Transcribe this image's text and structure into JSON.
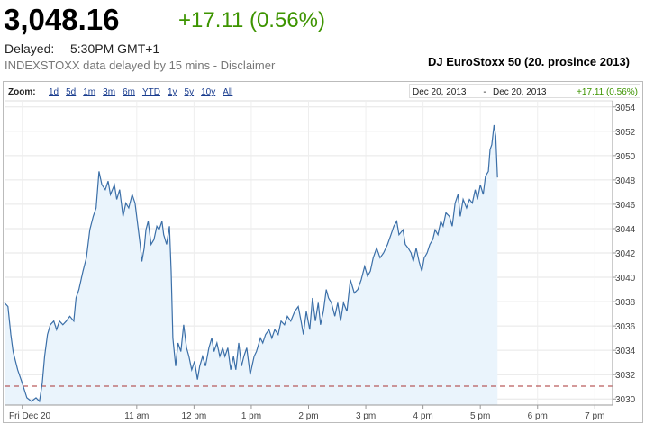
{
  "header": {
    "price": "3,048.16",
    "change": "+17.11 (0.56%)",
    "delayed_label": "Delayed:",
    "delayed_time": "5:30PM GMT+1",
    "source_note": "INDEXSTOXX data delayed by 15 mins - Disclaimer"
  },
  "title": "DJ EuroStoxx 50 (20. prosince 2013)",
  "toolbar": {
    "zoom_label": "Zoom:",
    "ranges": [
      "1d",
      "5d",
      "1m",
      "3m",
      "6m",
      "YTD",
      "1y",
      "5y",
      "10y",
      "All"
    ],
    "date_from": "Dec 20, 2013",
    "separator": "-",
    "date_to": "Dec 20, 2013",
    "change": "+17.11 (0.56%)"
  },
  "chart_data": {
    "type": "area",
    "color": "#3b6fa8",
    "fill": "#eaf4fc",
    "grid": true,
    "reference_line": 3031.05,
    "reference_color": "#a33",
    "xlim": [
      8.69,
      19.31
    ],
    "ylim": [
      3029.5,
      3054.5
    ],
    "xticks": [
      {
        "value": 9,
        "label": "Fri Dec 20"
      },
      {
        "value": 11,
        "label": "11 am"
      },
      {
        "value": 12,
        "label": "12 pm"
      },
      {
        "value": 13,
        "label": "1 pm"
      },
      {
        "value": 14,
        "label": "2 pm"
      },
      {
        "value": 15,
        "label": "3 pm"
      },
      {
        "value": 16,
        "label": "4 pm"
      },
      {
        "value": 17,
        "label": "5 pm"
      },
      {
        "value": 18,
        "label": "6 pm"
      },
      {
        "value": 19,
        "label": "7 pm"
      }
    ],
    "yticks": [
      3030,
      3032,
      3034,
      3036,
      3038,
      3040,
      3042,
      3044,
      3046,
      3048,
      3050,
      3052,
      3054
    ],
    "x": [
      8.69,
      8.75,
      8.8,
      8.84,
      8.92,
      9.0,
      9.08,
      9.16,
      9.24,
      9.3,
      9.35,
      9.39,
      9.44,
      9.49,
      9.55,
      9.6,
      9.65,
      9.71,
      9.77,
      9.83,
      9.9,
      9.94,
      9.99,
      10.06,
      10.12,
      10.18,
      10.24,
      10.29,
      10.34,
      10.39,
      10.45,
      10.5,
      10.54,
      10.61,
      10.65,
      10.7,
      10.76,
      10.81,
      10.86,
      10.92,
      10.97,
      11.02,
      11.06,
      11.09,
      11.13,
      11.16,
      11.2,
      11.25,
      11.3,
      11.35,
      11.39,
      11.44,
      11.47,
      11.52,
      11.57,
      11.6,
      11.63,
      11.68,
      11.72,
      11.77,
      11.82,
      11.87,
      11.91,
      11.96,
      12.01,
      12.06,
      12.1,
      12.15,
      12.2,
      12.26,
      12.31,
      12.35,
      12.4,
      12.45,
      12.5,
      12.54,
      12.59,
      12.64,
      12.69,
      12.73,
      12.78,
      12.83,
      12.87,
      12.92,
      12.98,
      13.05,
      13.09,
      13.16,
      13.2,
      13.25,
      13.31,
      13.36,
      13.41,
      13.47,
      13.52,
      13.58,
      13.63,
      13.69,
      13.76,
      13.82,
      13.87,
      13.91,
      13.96,
      14.02,
      14.07,
      14.12,
      14.17,
      14.21,
      14.26,
      14.31,
      14.35,
      14.4,
      14.46,
      14.51,
      14.56,
      14.61,
      14.67,
      14.73,
      14.8,
      14.86,
      14.92,
      14.98,
      15.03,
      15.08,
      15.13,
      15.19,
      15.25,
      15.31,
      15.38,
      15.44,
      15.49,
      15.54,
      15.58,
      15.65,
      15.69,
      15.74,
      15.79,
      15.83,
      15.88,
      15.93,
      15.98,
      16.02,
      16.07,
      16.12,
      16.17,
      16.21,
      16.26,
      16.31,
      16.35,
      16.4,
      16.46,
      16.51,
      16.56,
      16.61,
      16.65,
      16.7,
      16.76,
      16.81,
      16.86,
      16.91,
      16.95,
      17.0,
      17.05,
      17.09,
      17.14,
      17.17,
      17.2,
      17.24,
      17.27,
      17.3
    ],
    "values": [
      3037.9,
      3037.6,
      3035.3,
      3033.9,
      3032.4,
      3031.3,
      3030.1,
      3029.8,
      3030.1,
      3029.8,
      3031.3,
      3033.5,
      3035.3,
      3036.1,
      3036.4,
      3035.7,
      3036.4,
      3036.1,
      3036.4,
      3036.8,
      3036.4,
      3038.3,
      3039.0,
      3040.5,
      3041.6,
      3043.9,
      3045.0,
      3045.7,
      3048.7,
      3047.6,
      3047.2,
      3047.9,
      3046.8,
      3047.6,
      3046.4,
      3047.2,
      3045.0,
      3046.1,
      3045.7,
      3046.8,
      3046.1,
      3044.2,
      3042.7,
      3041.3,
      3042.4,
      3043.9,
      3044.6,
      3042.7,
      3043.1,
      3044.2,
      3043.9,
      3044.6,
      3043.5,
      3042.7,
      3044.2,
      3040.5,
      3035.0,
      3032.7,
      3034.6,
      3033.9,
      3036.1,
      3034.2,
      3033.5,
      3032.4,
      3033.1,
      3031.6,
      3032.7,
      3033.5,
      3032.7,
      3034.2,
      3035.0,
      3033.9,
      3034.6,
      3033.5,
      3034.2,
      3033.5,
      3034.2,
      3032.4,
      3033.5,
      3032.4,
      3034.6,
      3032.7,
      3033.5,
      3034.2,
      3032.0,
      3033.5,
      3033.9,
      3035.0,
      3034.6,
      3035.3,
      3035.7,
      3035.0,
      3035.7,
      3035.3,
      3036.4,
      3036.1,
      3036.8,
      3036.4,
      3037.2,
      3037.6,
      3036.4,
      3035.3,
      3037.2,
      3035.7,
      3038.3,
      3036.4,
      3037.9,
      3036.1,
      3037.2,
      3039.0,
      3038.3,
      3037.9,
      3036.8,
      3037.9,
      3036.4,
      3037.9,
      3037.2,
      3039.8,
      3038.7,
      3039.0,
      3039.8,
      3040.9,
      3040.1,
      3040.5,
      3041.6,
      3042.4,
      3041.6,
      3042.0,
      3042.7,
      3043.5,
      3044.2,
      3044.6,
      3043.5,
      3043.9,
      3042.7,
      3042.4,
      3042.0,
      3041.3,
      3042.4,
      3041.3,
      3040.5,
      3041.6,
      3042.0,
      3042.7,
      3043.1,
      3043.9,
      3043.5,
      3044.6,
      3044.2,
      3045.3,
      3045.0,
      3044.2,
      3046.1,
      3046.8,
      3045.0,
      3046.4,
      3045.7,
      3046.4,
      3046.1,
      3047.2,
      3046.4,
      3047.6,
      3046.8,
      3048.3,
      3048.7,
      3050.5,
      3050.9,
      3052.5,
      3051.6,
      3048.2
    ]
  }
}
